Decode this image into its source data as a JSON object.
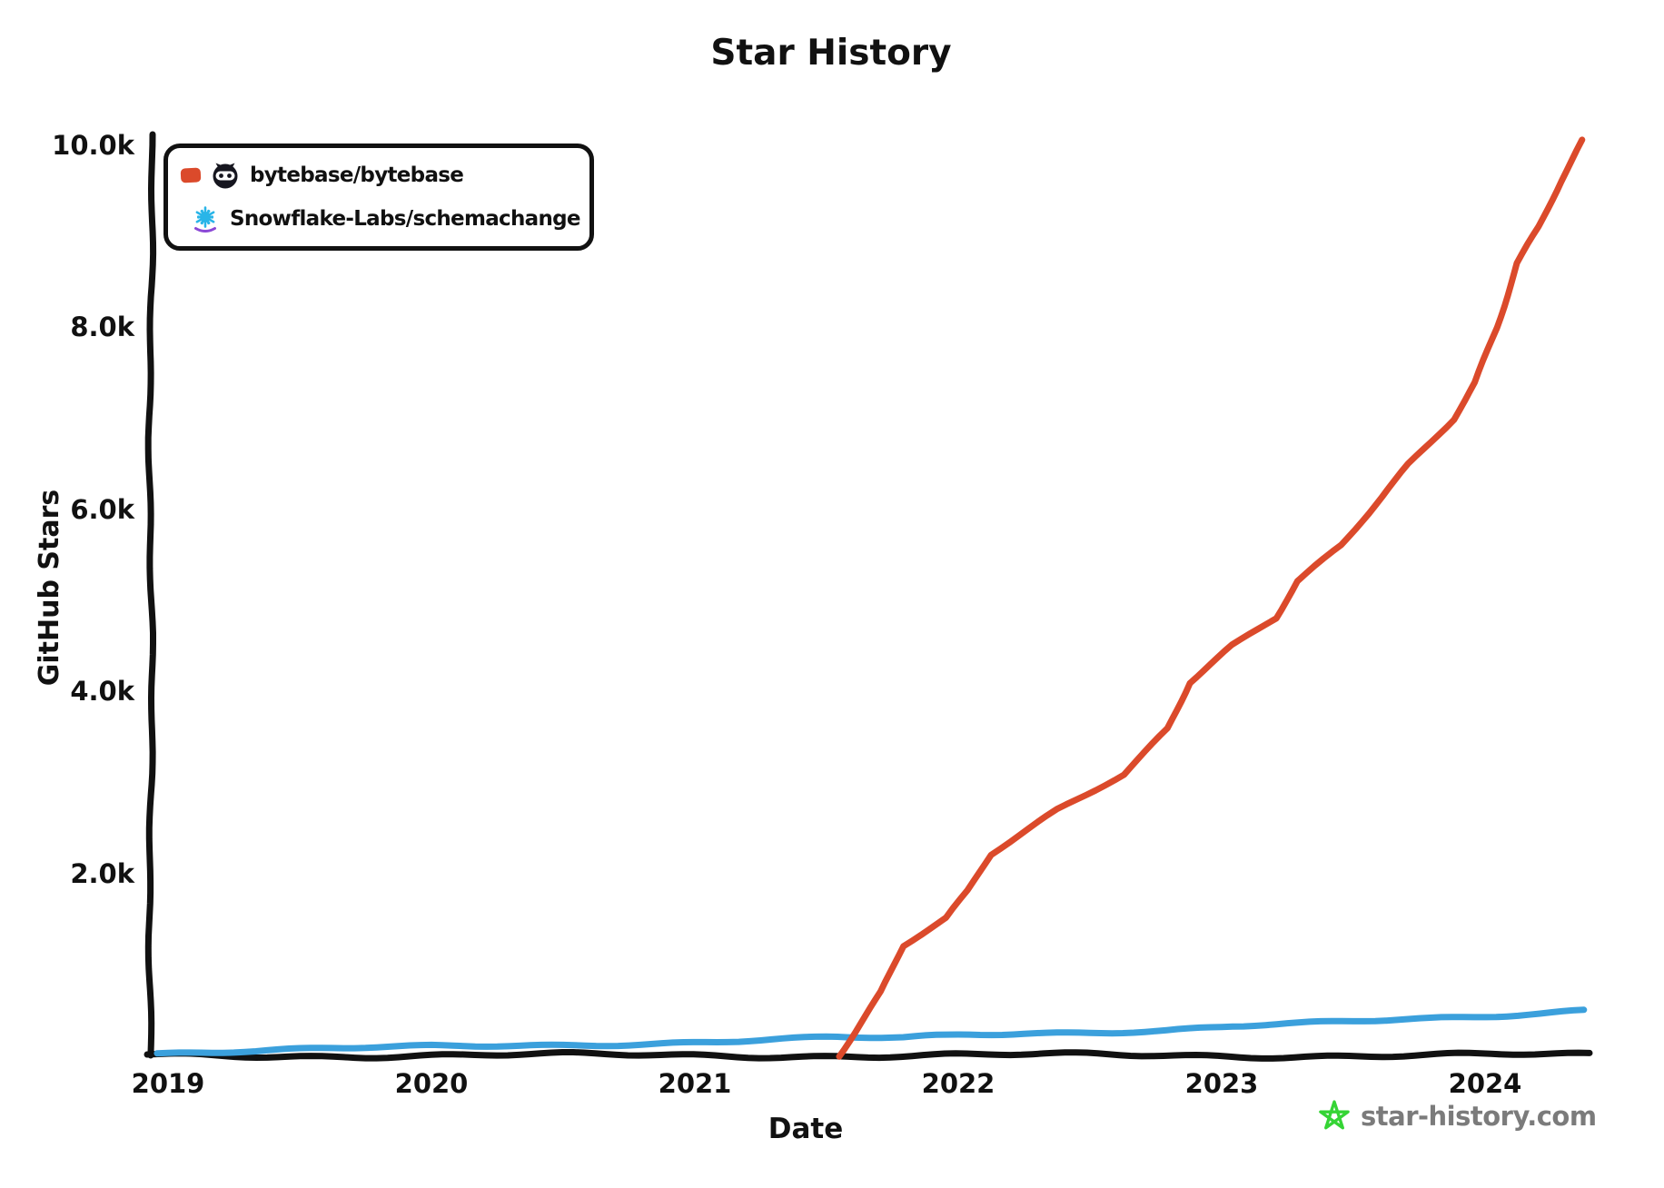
{
  "title": "Star History",
  "axes": {
    "y_label": "GitHub Stars",
    "x_label": "Date",
    "y_ticks": [
      "10.0k",
      "8.0k",
      "6.0k",
      "4.0k",
      "2.0k"
    ],
    "x_ticks": [
      "2019",
      "2020",
      "2021",
      "2022",
      "2023",
      "2024"
    ]
  },
  "icons": {
    "bytebase": "bytebase-logo",
    "snowflake": "snowflake-logo",
    "watermark_star": "green-star"
  },
  "watermark": {
    "text": "star-history.com",
    "star_color": "#35d435",
    "text_color": "#7b7b7b"
  },
  "chart_data": {
    "type": "line",
    "title": "Star History",
    "xlabel": "Date",
    "ylabel": "GitHub Stars",
    "grid": false,
    "legend_position": "top-left",
    "style": "xkcd-hand-drawn",
    "y_axis": {
      "min": 0,
      "max": 10000,
      "tick_step": 2000,
      "tick_format": "k"
    },
    "x_axis": {
      "start": "2018-12",
      "end": "2024-05",
      "ticks": [
        2019,
        2020,
        2021,
        2022,
        2023,
        2024
      ]
    },
    "series": [
      {
        "name": "bytebase/bytebase",
        "color": "#db4a2b",
        "points": [
          [
            "2021-07",
            0
          ],
          [
            "2021-08",
            350
          ],
          [
            "2021-09",
            700
          ],
          [
            "2021-10",
            1200
          ],
          [
            "2021-12",
            1500
          ],
          [
            "2022-01",
            1800
          ],
          [
            "2022-02",
            2200
          ],
          [
            "2022-05",
            2700
          ],
          [
            "2022-08",
            3100
          ],
          [
            "2022-10",
            3600
          ],
          [
            "2022-11",
            4100
          ],
          [
            "2022-12",
            4300
          ],
          [
            "2023-01",
            4500
          ],
          [
            "2023-03",
            4800
          ],
          [
            "2023-04",
            5200
          ],
          [
            "2023-06",
            5600
          ],
          [
            "2023-09",
            6500
          ],
          [
            "2023-11",
            7000
          ],
          [
            "2023-12",
            7400
          ],
          [
            "2024-01",
            8000
          ],
          [
            "2024-02",
            8700
          ],
          [
            "2024-03",
            9100
          ],
          [
            "2024-04",
            9600
          ],
          [
            "2024-05",
            10050
          ]
        ]
      },
      {
        "name": "Snowflake-Labs/schemachange",
        "color": "#3ba0dc",
        "points": [
          [
            "2018-12",
            30
          ],
          [
            "2019-06",
            60
          ],
          [
            "2020-01",
            95
          ],
          [
            "2020-07",
            120
          ],
          [
            "2021-01",
            150
          ],
          [
            "2021-07",
            190
          ],
          [
            "2021-10",
            185
          ],
          [
            "2022-01",
            230
          ],
          [
            "2022-04",
            250
          ],
          [
            "2022-07",
            265
          ],
          [
            "2022-10",
            280
          ],
          [
            "2023-01",
            320
          ],
          [
            "2023-04",
            340
          ],
          [
            "2023-07",
            370
          ],
          [
            "2023-10",
            400
          ],
          [
            "2024-01",
            440
          ],
          [
            "2024-03",
            470
          ],
          [
            "2024-05",
            510
          ]
        ]
      }
    ]
  }
}
